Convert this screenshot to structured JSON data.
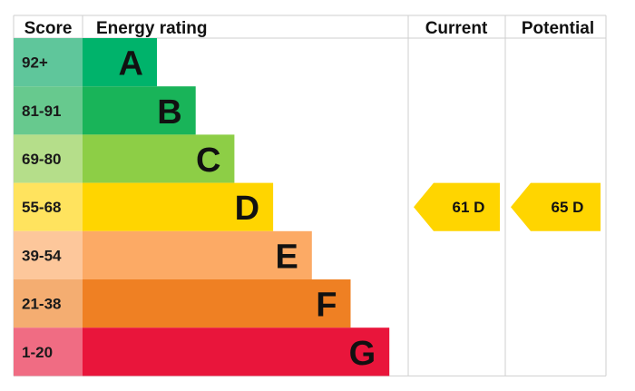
{
  "chart_data": {
    "type": "bar",
    "headers": {
      "score": "Score",
      "energy_rating": "Energy rating",
      "current": "Current",
      "potential": "Potential"
    },
    "bands": [
      {
        "score": "92+",
        "letter": "A",
        "bar_color": "#00b36b",
        "score_color": "#5fc69b"
      },
      {
        "score": "81-91",
        "letter": "B",
        "bar_color": "#19b459",
        "score_color": "#67c98e"
      },
      {
        "score": "69-80",
        "letter": "C",
        "bar_color": "#8dce46",
        "score_color": "#b5de8a"
      },
      {
        "score": "55-68",
        "letter": "D",
        "bar_color": "#ffd500",
        "score_color": "#ffe35e"
      },
      {
        "score": "39-54",
        "letter": "E",
        "bar_color": "#fcaa65",
        "score_color": "#fdc79b"
      },
      {
        "score": "21-38",
        "letter": "F",
        "bar_color": "#ef8023",
        "score_color": "#f4ad71"
      },
      {
        "score": "1-20",
        "letter": "G",
        "bar_color": "#e9153b",
        "score_color": "#f06c83"
      }
    ],
    "current": {
      "value": 61,
      "letter": "D",
      "label": "61  D"
    },
    "potential": {
      "value": 65,
      "letter": "D",
      "label": "65  D"
    }
  }
}
